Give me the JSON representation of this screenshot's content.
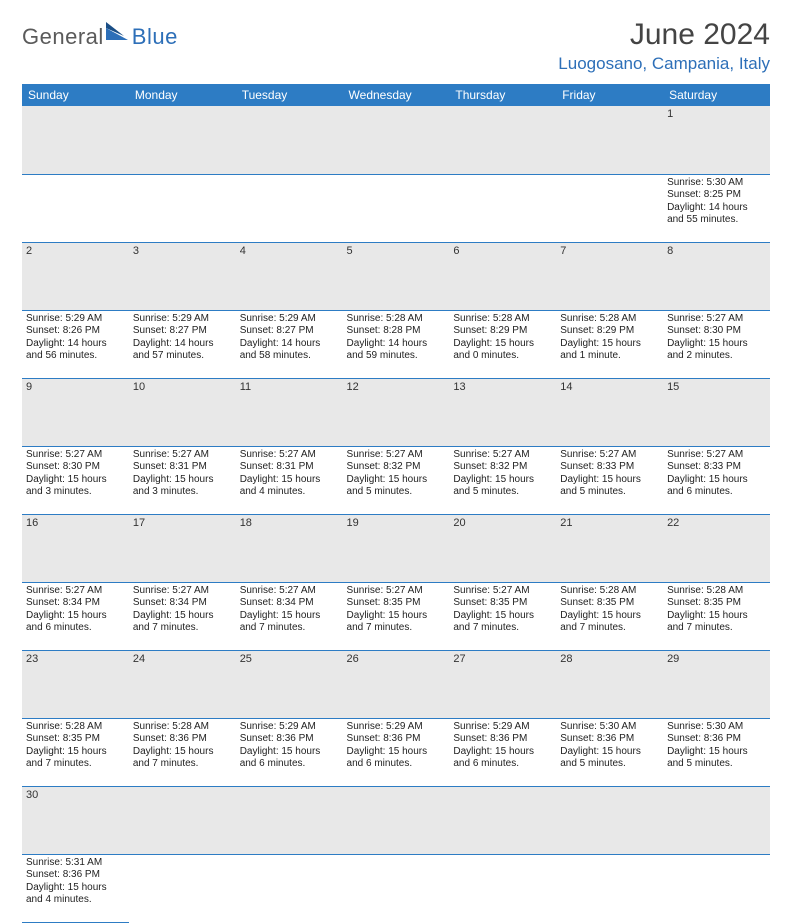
{
  "brand": {
    "part1": "General",
    "part2": "Blue"
  },
  "title": "June 2024",
  "location": "Luogosano, Campania, Italy",
  "colors": {
    "header_bg": "#2d7cc4",
    "header_text": "#ffffff",
    "daynum_bg": "#e8e8e8",
    "brand_blue": "#2d6fb8",
    "text": "#222222"
  },
  "weekdays": [
    "Sunday",
    "Monday",
    "Tuesday",
    "Wednesday",
    "Thursday",
    "Friday",
    "Saturday"
  ],
  "weeks": [
    [
      null,
      null,
      null,
      null,
      null,
      null,
      {
        "n": "1",
        "sr": "Sunrise: 5:30 AM",
        "ss": "Sunset: 8:25 PM",
        "dl1": "Daylight: 14 hours",
        "dl2": "and 55 minutes."
      }
    ],
    [
      {
        "n": "2",
        "sr": "Sunrise: 5:29 AM",
        "ss": "Sunset: 8:26 PM",
        "dl1": "Daylight: 14 hours",
        "dl2": "and 56 minutes."
      },
      {
        "n": "3",
        "sr": "Sunrise: 5:29 AM",
        "ss": "Sunset: 8:27 PM",
        "dl1": "Daylight: 14 hours",
        "dl2": "and 57 minutes."
      },
      {
        "n": "4",
        "sr": "Sunrise: 5:29 AM",
        "ss": "Sunset: 8:27 PM",
        "dl1": "Daylight: 14 hours",
        "dl2": "and 58 minutes."
      },
      {
        "n": "5",
        "sr": "Sunrise: 5:28 AM",
        "ss": "Sunset: 8:28 PM",
        "dl1": "Daylight: 14 hours",
        "dl2": "and 59 minutes."
      },
      {
        "n": "6",
        "sr": "Sunrise: 5:28 AM",
        "ss": "Sunset: 8:29 PM",
        "dl1": "Daylight: 15 hours",
        "dl2": "and 0 minutes."
      },
      {
        "n": "7",
        "sr": "Sunrise: 5:28 AM",
        "ss": "Sunset: 8:29 PM",
        "dl1": "Daylight: 15 hours",
        "dl2": "and 1 minute."
      },
      {
        "n": "8",
        "sr": "Sunrise: 5:27 AM",
        "ss": "Sunset: 8:30 PM",
        "dl1": "Daylight: 15 hours",
        "dl2": "and 2 minutes."
      }
    ],
    [
      {
        "n": "9",
        "sr": "Sunrise: 5:27 AM",
        "ss": "Sunset: 8:30 PM",
        "dl1": "Daylight: 15 hours",
        "dl2": "and 3 minutes."
      },
      {
        "n": "10",
        "sr": "Sunrise: 5:27 AM",
        "ss": "Sunset: 8:31 PM",
        "dl1": "Daylight: 15 hours",
        "dl2": "and 3 minutes."
      },
      {
        "n": "11",
        "sr": "Sunrise: 5:27 AM",
        "ss": "Sunset: 8:31 PM",
        "dl1": "Daylight: 15 hours",
        "dl2": "and 4 minutes."
      },
      {
        "n": "12",
        "sr": "Sunrise: 5:27 AM",
        "ss": "Sunset: 8:32 PM",
        "dl1": "Daylight: 15 hours",
        "dl2": "and 5 minutes."
      },
      {
        "n": "13",
        "sr": "Sunrise: 5:27 AM",
        "ss": "Sunset: 8:32 PM",
        "dl1": "Daylight: 15 hours",
        "dl2": "and 5 minutes."
      },
      {
        "n": "14",
        "sr": "Sunrise: 5:27 AM",
        "ss": "Sunset: 8:33 PM",
        "dl1": "Daylight: 15 hours",
        "dl2": "and 5 minutes."
      },
      {
        "n": "15",
        "sr": "Sunrise: 5:27 AM",
        "ss": "Sunset: 8:33 PM",
        "dl1": "Daylight: 15 hours",
        "dl2": "and 6 minutes."
      }
    ],
    [
      {
        "n": "16",
        "sr": "Sunrise: 5:27 AM",
        "ss": "Sunset: 8:34 PM",
        "dl1": "Daylight: 15 hours",
        "dl2": "and 6 minutes."
      },
      {
        "n": "17",
        "sr": "Sunrise: 5:27 AM",
        "ss": "Sunset: 8:34 PM",
        "dl1": "Daylight: 15 hours",
        "dl2": "and 7 minutes."
      },
      {
        "n": "18",
        "sr": "Sunrise: 5:27 AM",
        "ss": "Sunset: 8:34 PM",
        "dl1": "Daylight: 15 hours",
        "dl2": "and 7 minutes."
      },
      {
        "n": "19",
        "sr": "Sunrise: 5:27 AM",
        "ss": "Sunset: 8:35 PM",
        "dl1": "Daylight: 15 hours",
        "dl2": "and 7 minutes."
      },
      {
        "n": "20",
        "sr": "Sunrise: 5:27 AM",
        "ss": "Sunset: 8:35 PM",
        "dl1": "Daylight: 15 hours",
        "dl2": "and 7 minutes."
      },
      {
        "n": "21",
        "sr": "Sunrise: 5:28 AM",
        "ss": "Sunset: 8:35 PM",
        "dl1": "Daylight: 15 hours",
        "dl2": "and 7 minutes."
      },
      {
        "n": "22",
        "sr": "Sunrise: 5:28 AM",
        "ss": "Sunset: 8:35 PM",
        "dl1": "Daylight: 15 hours",
        "dl2": "and 7 minutes."
      }
    ],
    [
      {
        "n": "23",
        "sr": "Sunrise: 5:28 AM",
        "ss": "Sunset: 8:35 PM",
        "dl1": "Daylight: 15 hours",
        "dl2": "and 7 minutes."
      },
      {
        "n": "24",
        "sr": "Sunrise: 5:28 AM",
        "ss": "Sunset: 8:36 PM",
        "dl1": "Daylight: 15 hours",
        "dl2": "and 7 minutes."
      },
      {
        "n": "25",
        "sr": "Sunrise: 5:29 AM",
        "ss": "Sunset: 8:36 PM",
        "dl1": "Daylight: 15 hours",
        "dl2": "and 6 minutes."
      },
      {
        "n": "26",
        "sr": "Sunrise: 5:29 AM",
        "ss": "Sunset: 8:36 PM",
        "dl1": "Daylight: 15 hours",
        "dl2": "and 6 minutes."
      },
      {
        "n": "27",
        "sr": "Sunrise: 5:29 AM",
        "ss": "Sunset: 8:36 PM",
        "dl1": "Daylight: 15 hours",
        "dl2": "and 6 minutes."
      },
      {
        "n": "28",
        "sr": "Sunrise: 5:30 AM",
        "ss": "Sunset: 8:36 PM",
        "dl1": "Daylight: 15 hours",
        "dl2": "and 5 minutes."
      },
      {
        "n": "29",
        "sr": "Sunrise: 5:30 AM",
        "ss": "Sunset: 8:36 PM",
        "dl1": "Daylight: 15 hours",
        "dl2": "and 5 minutes."
      }
    ],
    [
      {
        "n": "30",
        "sr": "Sunrise: 5:31 AM",
        "ss": "Sunset: 8:36 PM",
        "dl1": "Daylight: 15 hours",
        "dl2": "and 4 minutes."
      },
      null,
      null,
      null,
      null,
      null,
      null
    ]
  ]
}
